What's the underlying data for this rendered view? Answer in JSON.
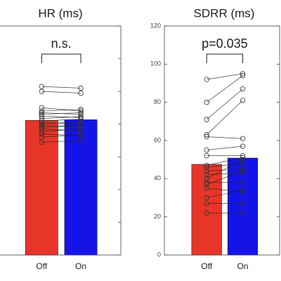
{
  "chart_data": [
    {
      "type": "bar",
      "title": "HR (ms)",
      "categories": [
        "Off",
        "On"
      ],
      "values": [
        823,
        827
      ],
      "colors": [
        "#e8352a",
        "#1414e8"
      ],
      "points": [
        [
          1030,
          1000,
          900,
          880,
          870,
          860,
          850,
          835,
          820,
          810,
          800,
          790,
          780,
          770,
          755,
          740,
          720,
          690
        ],
        [
          1020,
          990,
          880,
          890,
          860,
          870,
          840,
          845,
          830,
          800,
          815,
          790,
          790,
          760,
          770,
          730,
          735,
          700
        ]
      ],
      "annotation": "n.s.",
      "ylim": [
        0,
        1400
      ],
      "yticks": [
        0,
        200,
        400,
        600,
        800,
        1000,
        1200,
        1400
      ],
      "show_ytick_labels": false
    },
    {
      "type": "bar",
      "title": "SDRR (ms)",
      "categories": [
        "Off",
        "On"
      ],
      "values": [
        47.5,
        50.8
      ],
      "colors": [
        "#e8352a",
        "#1414e8"
      ],
      "points": [
        [
          92,
          80,
          71,
          63,
          62,
          55,
          52,
          47,
          46,
          44,
          42,
          40,
          38,
          37,
          35,
          30,
          27,
          22
        ],
        [
          95,
          94,
          87,
          81,
          61,
          57,
          52,
          51,
          48,
          45,
          43,
          50,
          38,
          44,
          33,
          34,
          27,
          22
        ]
      ],
      "annotation": "p=0.035",
      "ylim": [
        0,
        120
      ],
      "yticks": [
        0,
        20,
        40,
        60,
        80,
        100,
        120
      ],
      "show_ytick_labels": true
    }
  ]
}
